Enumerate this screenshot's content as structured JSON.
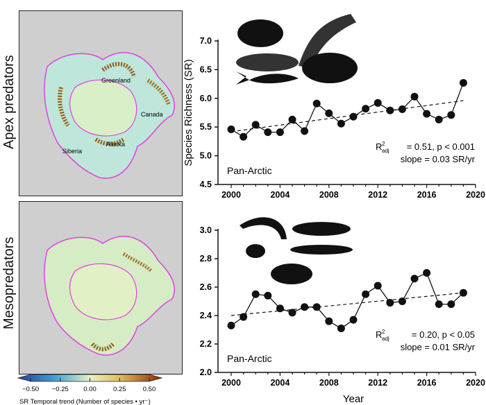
{
  "rows": [
    {
      "label": "Apex predators",
      "map_labels": [
        "Greenland",
        "Canada",
        "Alaska",
        "Siberia"
      ]
    },
    {
      "label": "Mesopredators",
      "map_labels": []
    }
  ],
  "colorbar": {
    "ticks": [
      "−0.50",
      "−0.25",
      "0.00",
      "0.25",
      "0.50"
    ],
    "range": [
      -0.5,
      0.5
    ],
    "colors": [
      "#2b3f99",
      "#3f9fd0",
      "#bfe6e0",
      "#f1e4a0",
      "#d6a53a",
      "#8a2a0a"
    ],
    "label": "SR Temporal trend (Number of species • yr⁻)"
  },
  "chart_data": [
    {
      "type": "line",
      "ylabel": "Species Richness (SR)",
      "xlabel": "",
      "xlim": [
        2000,
        2020
      ],
      "ylim": [
        4.5,
        7.0
      ],
      "xticks": [
        "2000",
        "2004",
        "2008",
        "2012",
        "2016",
        "2020"
      ],
      "yticks": [
        "4.5",
        "5.0",
        "5.5",
        "6.0",
        "6.5",
        "7.0"
      ],
      "x": [
        2000,
        2001,
        2002,
        2003,
        2004,
        2005,
        2006,
        2007,
        2008,
        2009,
        2010,
        2011,
        2012,
        2013,
        2014,
        2015,
        2016,
        2017,
        2018,
        2019
      ],
      "values": [
        5.46,
        5.33,
        5.54,
        5.41,
        5.41,
        5.63,
        5.43,
        5.91,
        5.74,
        5.56,
        5.68,
        5.82,
        5.92,
        5.79,
        5.81,
        6.03,
        5.73,
        5.63,
        5.71,
        6.27
      ],
      "trend": {
        "x": [
          2000,
          2019
        ],
        "y": [
          5.42,
          5.96
        ]
      },
      "region": "Pan-Arctic",
      "stat_r2": "R²adj = 0.51, p < 0.001",
      "stat_r2_value": "= 0.51, p < 0.001",
      "stat_slope": "slope = 0.03 SR/yr",
      "icons": [
        "polar-bear-icon",
        "seal-icon",
        "whale-icon",
        "walrus-icon",
        "shark-icon"
      ]
    },
    {
      "type": "line",
      "ylabel": "",
      "xlabel": "Year",
      "xlim": [
        2000,
        2020
      ],
      "ylim": [
        2.0,
        3.0
      ],
      "xticks": [
        "2000",
        "2004",
        "2008",
        "2012",
        "2016",
        "2020"
      ],
      "yticks": [
        "2.0",
        "2.2",
        "2.4",
        "2.6",
        "2.8",
        "3.0"
      ],
      "x": [
        2000,
        2001,
        2002,
        2003,
        2004,
        2005,
        2006,
        2007,
        2008,
        2009,
        2010,
        2011,
        2012,
        2013,
        2014,
        2015,
        2016,
        2017,
        2018,
        2019
      ],
      "values": [
        2.33,
        2.39,
        2.55,
        2.54,
        2.45,
        2.42,
        2.46,
        2.46,
        2.36,
        2.31,
        2.37,
        2.55,
        2.61,
        2.49,
        2.5,
        2.66,
        2.7,
        2.48,
        2.48,
        2.56
      ],
      "trend": {
        "x": [
          2000,
          2019
        ],
        "y": [
          2.4,
          2.56
        ]
      },
      "region": "Pan-Arctic",
      "stat_r2_value": "= 0.20, p < 0.05",
      "stat_slope": "slope = 0.01 SR/yr",
      "icons": [
        "shrimp-icon",
        "crab-icon",
        "cod-icon",
        "capelin-icon",
        "flatfish-icon"
      ]
    }
  ]
}
